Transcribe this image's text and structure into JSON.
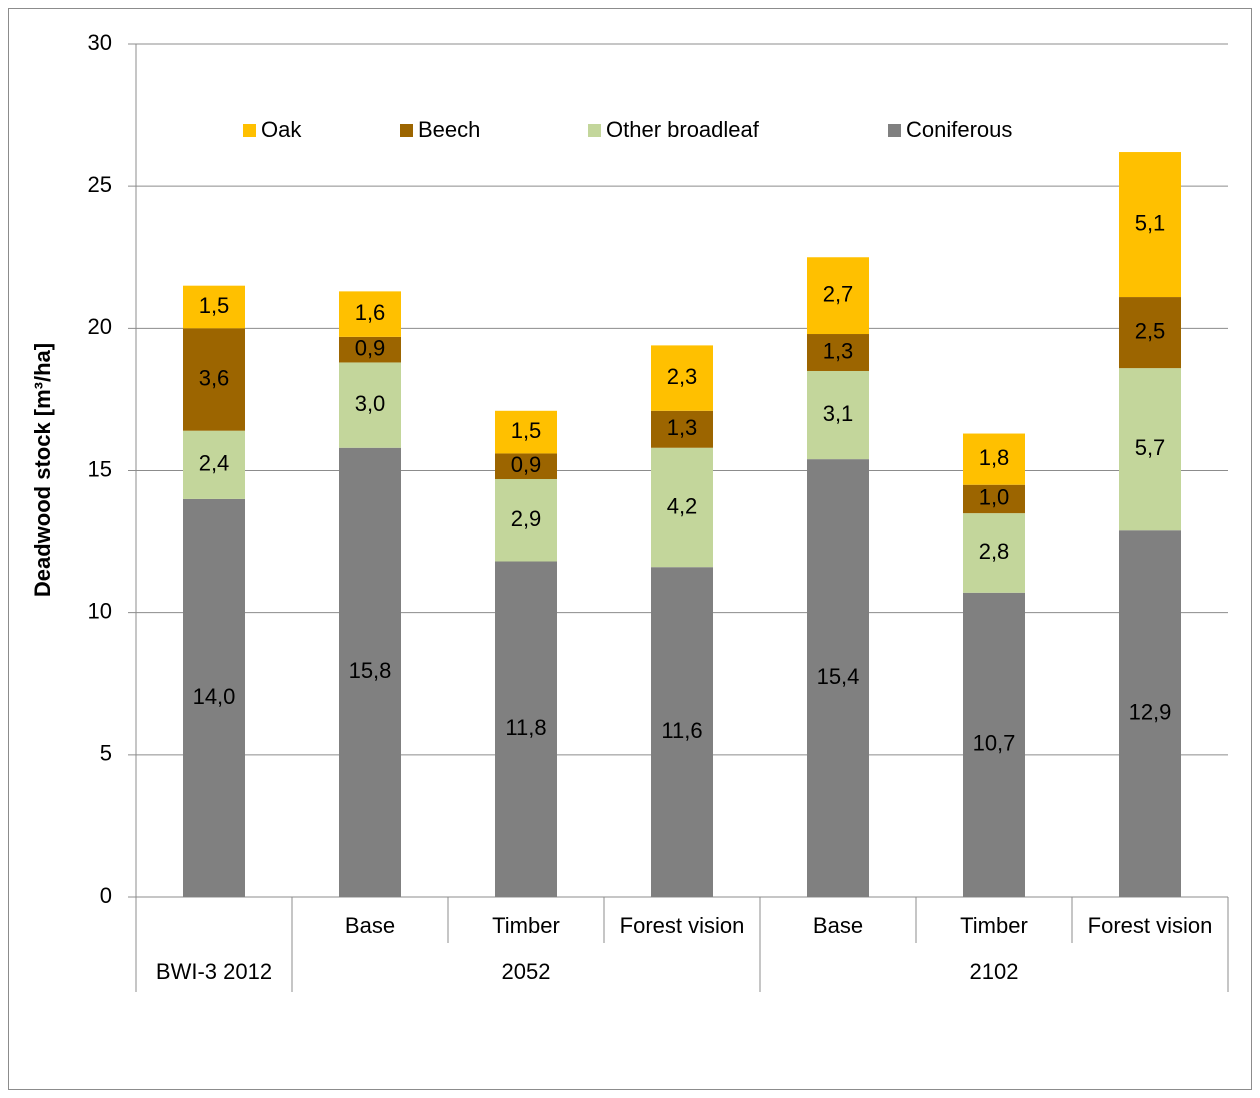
{
  "chart_data": {
    "type": "stacked-bar",
    "y_label": "Deadwood stock [m³/ha]",
    "categories": [
      null,
      "Base",
      "Timber",
      "Forest vision",
      "Base",
      "Timber",
      "Forest vision"
    ],
    "category_groups": [
      {
        "label": "BWI-3 2012",
        "span": 1
      },
      {
        "label": "2052",
        "span": 3
      },
      {
        "label": "2102",
        "span": 3
      }
    ],
    "series": [
      {
        "name": "Coniferous",
        "color": "#808080",
        "values": [
          14.0,
          15.8,
          11.8,
          11.6,
          15.4,
          10.7,
          12.9
        ],
        "value_labels": [
          "14,0",
          "15,8",
          "11,8",
          "11,6",
          "15,4",
          "10,7",
          "12,9"
        ]
      },
      {
        "name": "Other broadleaf",
        "color": "#c3d69b",
        "values": [
          2.4,
          3.0,
          2.9,
          4.2,
          3.1,
          2.8,
          5.7
        ],
        "value_labels": [
          "2,4",
          "3,0",
          "2,9",
          "4,2",
          "3,1",
          "2,8",
          "5,7"
        ]
      },
      {
        "name": "Beech",
        "color": "#9c6500",
        "values": [
          3.6,
          0.9,
          0.9,
          1.3,
          1.3,
          1.0,
          2.5
        ],
        "value_labels": [
          "3,6",
          "0,9",
          "0,9",
          "1,3",
          "1,3",
          "1,0",
          "2,5"
        ]
      },
      {
        "name": "Oak",
        "color": "#ffc000",
        "values": [
          1.5,
          1.6,
          1.5,
          2.3,
          2.7,
          1.8,
          5.1
        ],
        "value_labels": [
          "1,5",
          "1,6",
          "1,5",
          "2,3",
          "2,7",
          "1,8",
          "5,1"
        ]
      }
    ],
    "ylim": [
      0,
      30
    ],
    "yticks": [
      0,
      5,
      10,
      15,
      20,
      25,
      30
    ],
    "grid": true
  }
}
